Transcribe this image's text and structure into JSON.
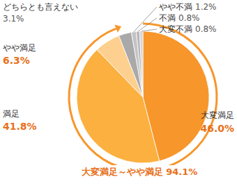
{
  "chart_data": {
    "type": "pie",
    "categories": [
      "大変満足",
      "満足",
      "やや満足",
      "どちらとも言えない",
      "やや不満",
      "不満",
      "大変不満"
    ],
    "values": [
      46.0,
      41.8,
      6.3,
      3.1,
      1.2,
      0.8,
      0.8
    ],
    "value_labels": [
      "46.0%",
      "41.8%",
      "6.3%",
      "3.1%",
      "1.2%",
      "0.8%",
      "0.8%"
    ],
    "colors": [
      "#f7962a",
      "#fbb03f",
      "#fdd08f",
      "#a9a9a9",
      "#c4c4c4",
      "#b6b6b6",
      "#d6d6d6"
    ],
    "data_labels": true,
    "annotations": [
      {
        "label": "大変満足～やや満足 94.1%",
        "value": 94.1
      }
    ]
  }
}
